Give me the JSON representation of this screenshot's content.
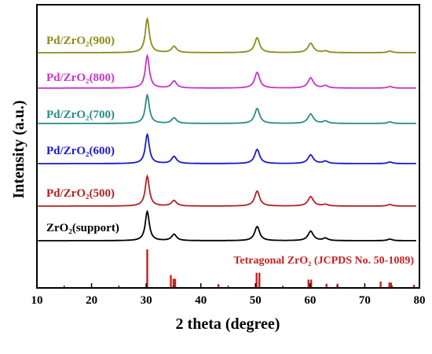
{
  "chart_data": {
    "type": "line",
    "xlabel": "2 theta (degree)",
    "ylabel": "Intensity (a.u.)",
    "xlim": [
      10,
      80
    ],
    "x_ticks": [
      10,
      20,
      30,
      40,
      50,
      60,
      70,
      80
    ],
    "x_tick_labels": [
      "10",
      "20",
      "30",
      "40",
      "50",
      "60",
      "70",
      "80"
    ],
    "y_ticks_shown": false,
    "grid": false,
    "peaks": [
      {
        "x": 30.2,
        "w": 0.45
      },
      {
        "x": 35.1,
        "w": 0.55
      },
      {
        "x": 50.3,
        "w": 0.55
      },
      {
        "x": 60.1,
        "w": 0.6
      },
      {
        "x": 62.8,
        "w": 0.55
      },
      {
        "x": 74.6,
        "w": 0.55
      }
    ],
    "series": [
      {
        "name": "ZrO₂(support)",
        "color": "#000000",
        "baseline": 0,
        "heights": [
          37,
          8,
          18,
          12,
          3,
          2
        ]
      },
      {
        "name": "Pd/ZrO₂(500)",
        "color": "#b22222",
        "baseline": 1,
        "heights": [
          38,
          7,
          19,
          12,
          2,
          2
        ]
      },
      {
        "name": "Pd/ZrO₂(600)",
        "color": "#1a1acc",
        "baseline": 2,
        "heights": [
          37,
          9,
          18,
          11,
          3,
          2
        ]
      },
      {
        "name": "Pd/ZrO₂(700)",
        "color": "#2a8a8a",
        "baseline": 3,
        "heights": [
          36,
          7,
          19,
          12,
          3,
          2
        ]
      },
      {
        "name": "Pd/ZrO₂(800)",
        "color": "#cc33cc",
        "baseline": 4,
        "heights": [
          41,
          9,
          20,
          13,
          3,
          2
        ]
      },
      {
        "name": "Pd/ZrO₂(900)",
        "color": "#8b8b1a",
        "baseline": 5,
        "heights": [
          43,
          8,
          19,
          12,
          2,
          2
        ]
      }
    ],
    "reference": {
      "label": "Tetragonal ZrO₂ (JCPDS No. 50-1089)",
      "color": "#c82020",
      "lines": [
        {
          "x": 30.2,
          "h": 1.0
        },
        {
          "x": 34.5,
          "h": 0.32
        },
        {
          "x": 35.0,
          "h": 0.22
        },
        {
          "x": 35.3,
          "h": 0.22
        },
        {
          "x": 43.2,
          "h": 0.08
        },
        {
          "x": 50.2,
          "h": 0.38
        },
        {
          "x": 50.7,
          "h": 0.38
        },
        {
          "x": 59.7,
          "h": 0.2
        },
        {
          "x": 60.2,
          "h": 0.2
        },
        {
          "x": 63.0,
          "h": 0.09
        },
        {
          "x": 65.0,
          "h": 0.09
        },
        {
          "x": 72.9,
          "h": 0.15
        },
        {
          "x": 74.5,
          "h": 0.12
        },
        {
          "x": 74.8,
          "h": 0.12
        },
        {
          "x": 79.0,
          "h": 0.06
        }
      ]
    }
  }
}
